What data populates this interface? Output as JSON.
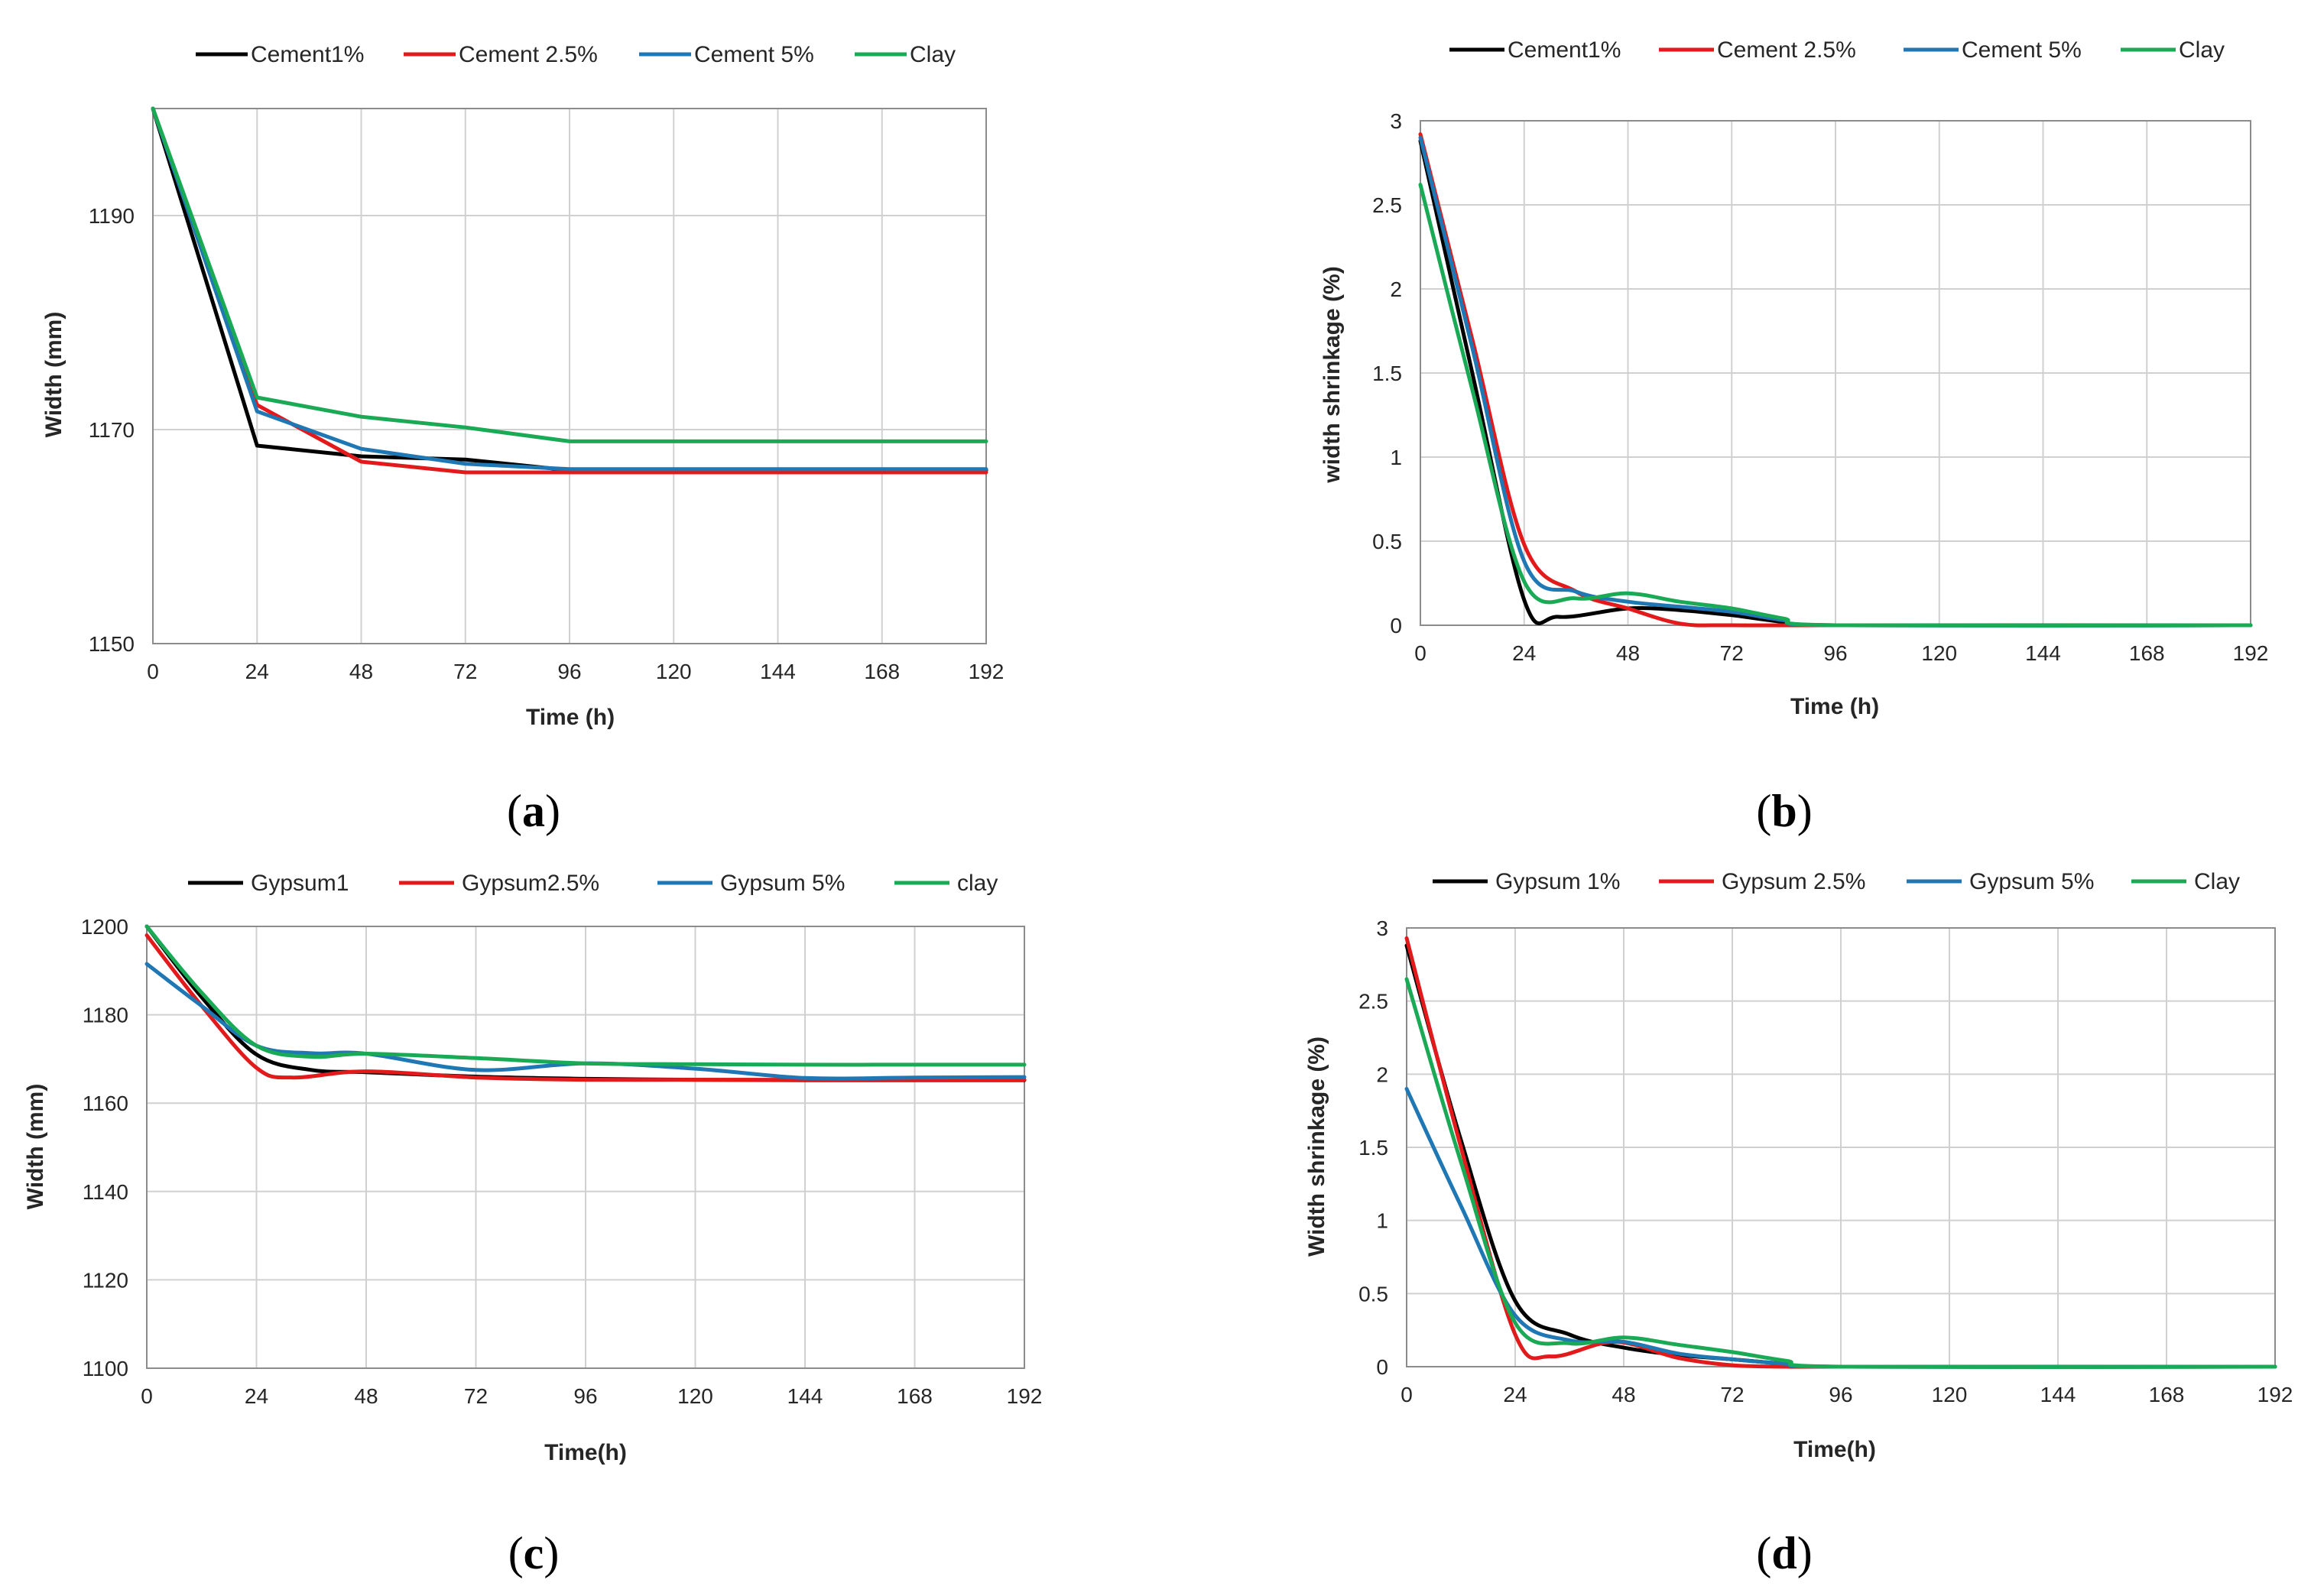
{
  "colors": {
    "black": "#000000",
    "red": "#e31a1c",
    "blue": "#1f77b4",
    "green": "#1aaa55"
  },
  "chart_data": [
    {
      "type": "line",
      "title": "",
      "caption_letter": "a",
      "xlabel": "Time (h)",
      "ylabel": "Width (mm)",
      "xlim": [
        0,
        192
      ],
      "ylim": [
        1150,
        1200
      ],
      "xticks": [
        0,
        24,
        48,
        72,
        96,
        120,
        144,
        168,
        192
      ],
      "yticks": [
        1150,
        1170,
        1190
      ],
      "smooth": false,
      "series": [
        {
          "name": "Cement1%",
          "color": "#000000",
          "x": [
            0,
            24,
            48,
            72,
            96,
            192
          ],
          "y": [
            1200,
            1168.5,
            1167.5,
            1167.2,
            1166.2,
            1166.2
          ]
        },
        {
          "name": "Cement 2.5%",
          "color": "#e31a1c",
          "x": [
            0,
            24,
            48,
            72,
            96,
            192
          ],
          "y": [
            1200,
            1172.3,
            1167.0,
            1166.0,
            1166.0,
            1166.0
          ]
        },
        {
          "name": "Cement 5%",
          "color": "#1f77b4",
          "x": [
            0,
            24,
            48,
            72,
            96,
            192
          ],
          "y": [
            1200,
            1171.7,
            1168.2,
            1166.8,
            1166.3,
            1166.3
          ]
        },
        {
          "name": "Clay",
          "color": "#1aaa55",
          "x": [
            0,
            24,
            48,
            72,
            96,
            192
          ],
          "y": [
            1200,
            1173.0,
            1171.2,
            1170.2,
            1168.9,
            1168.9
          ]
        }
      ]
    },
    {
      "type": "line",
      "title": "",
      "caption_letter": "b",
      "xlabel": "Time (h)",
      "ylabel": "width shrinkage (%)",
      "xlim": [
        0,
        192
      ],
      "ylim": [
        0,
        3
      ],
      "xticks": [
        0,
        24,
        48,
        72,
        96,
        120,
        144,
        168,
        192
      ],
      "yticks": [
        0,
        0.5,
        1,
        1.5,
        2,
        2.5,
        3
      ],
      "smooth": true,
      "series": [
        {
          "name": "Cement1%",
          "color": "#000000",
          "x": [
            0,
            12,
            24,
            32,
            48,
            60,
            72,
            84,
            96,
            192
          ],
          "y": [
            2.88,
            1.5,
            0.15,
            0.05,
            0.1,
            0.09,
            0.06,
            0.02,
            0,
            0
          ]
        },
        {
          "name": "Cement 2.5%",
          "color": "#e31a1c",
          "x": [
            0,
            12,
            24,
            36,
            48,
            60,
            72,
            96,
            192
          ],
          "y": [
            2.92,
            1.7,
            0.48,
            0.2,
            0.1,
            0.01,
            0,
            0,
            0
          ]
        },
        {
          "name": "Cement 5%",
          "color": "#1f77b4",
          "x": [
            0,
            12,
            24,
            36,
            48,
            60,
            72,
            84,
            96,
            192
          ],
          "y": [
            2.9,
            1.65,
            0.38,
            0.2,
            0.14,
            0.11,
            0.08,
            0.03,
            0,
            0
          ]
        },
        {
          "name": "Clay",
          "color": "#1aaa55",
          "x": [
            0,
            12,
            24,
            36,
            48,
            60,
            72,
            84,
            96,
            192
          ],
          "y": [
            2.62,
            1.4,
            0.26,
            0.16,
            0.19,
            0.14,
            0.1,
            0.04,
            0,
            0
          ]
        }
      ]
    },
    {
      "type": "line",
      "title": "",
      "caption_letter": "c",
      "xlabel": "Time(h)",
      "ylabel": "Width (mm)",
      "xlim": [
        0,
        192
      ],
      "ylim": [
        1100,
        1200
      ],
      "xticks": [
        0,
        24,
        48,
        72,
        96,
        120,
        144,
        168,
        192
      ],
      "yticks": [
        1100,
        1120,
        1140,
        1160,
        1180,
        1200
      ],
      "smooth": true,
      "series": [
        {
          "name": "Gypsum1",
          "color": "#000000",
          "x": [
            0,
            12,
            24,
            36,
            48,
            72,
            96,
            120,
            144,
            168,
            192
          ],
          "y": [
            1200,
            1184,
            1171,
            1167.5,
            1167,
            1166,
            1165.5,
            1165.3,
            1165.2,
            1165.2,
            1165.2
          ]
        },
        {
          "name": "Gypsum2.5%",
          "color": "#e31a1c",
          "x": [
            0,
            12,
            24,
            32,
            48,
            72,
            96,
            120,
            144,
            168,
            192
          ],
          "y": [
            1198,
            1182,
            1168,
            1165.8,
            1167.2,
            1165.8,
            1165.3,
            1165.3,
            1165.3,
            1165.3,
            1165.3
          ]
        },
        {
          "name": "Gypsum 5%",
          "color": "#1f77b4",
          "x": [
            0,
            12,
            24,
            36,
            48,
            72,
            96,
            120,
            144,
            168,
            192
          ],
          "y": [
            1191.5,
            1182,
            1173,
            1171.3,
            1171.2,
            1167.5,
            1169,
            1167.8,
            1165.7,
            1165.8,
            1165.9
          ]
        },
        {
          "name": "clay",
          "color": "#1aaa55",
          "x": [
            0,
            12,
            24,
            36,
            48,
            72,
            96,
            120,
            144,
            168,
            192
          ],
          "y": [
            1200,
            1185,
            1173,
            1170.5,
            1171.2,
            1170.2,
            1169,
            1168.8,
            1168.7,
            1168.7,
            1168.7
          ]
        }
      ]
    },
    {
      "type": "line",
      "title": "",
      "caption_letter": "d",
      "xlabel": "Time(h)",
      "ylabel": "Width shrinkage (%)",
      "xlim": [
        0,
        192
      ],
      "ylim": [
        0,
        3
      ],
      "xticks": [
        0,
        24,
        48,
        72,
        96,
        120,
        144,
        168,
        192
      ],
      "yticks": [
        0,
        0.5,
        1,
        1.5,
        2,
        2.5,
        3
      ],
      "smooth": true,
      "series": [
        {
          "name": "Gypsum 1%",
          "color": "#000000",
          "x": [
            0,
            12,
            24,
            36,
            48,
            60,
            72,
            84,
            96,
            192
          ],
          "y": [
            2.88,
            1.55,
            0.45,
            0.22,
            0.13,
            0.08,
            0.05,
            0.02,
            0,
            0
          ]
        },
        {
          "name": "Gypsum 2.5%",
          "color": "#e31a1c",
          "x": [
            0,
            12,
            24,
            32,
            46,
            60,
            72,
            84,
            96,
            192
          ],
          "y": [
            2.93,
            1.5,
            0.22,
            0.07,
            0.17,
            0.06,
            0.01,
            0,
            0,
            0
          ]
        },
        {
          "name": "Gypsum 5%",
          "color": "#1f77b4",
          "x": [
            0,
            12,
            24,
            36,
            48,
            60,
            72,
            84,
            96,
            192
          ],
          "y": [
            1.9,
            1.1,
            0.35,
            0.18,
            0.17,
            0.09,
            0.05,
            0.02,
            0,
            0
          ]
        },
        {
          "name": "Clay",
          "color": "#1aaa55",
          "x": [
            0,
            12,
            24,
            36,
            48,
            60,
            72,
            84,
            96,
            192
          ],
          "y": [
            2.65,
            1.4,
            0.3,
            0.16,
            0.2,
            0.15,
            0.1,
            0.04,
            0,
            0
          ]
        }
      ]
    }
  ]
}
